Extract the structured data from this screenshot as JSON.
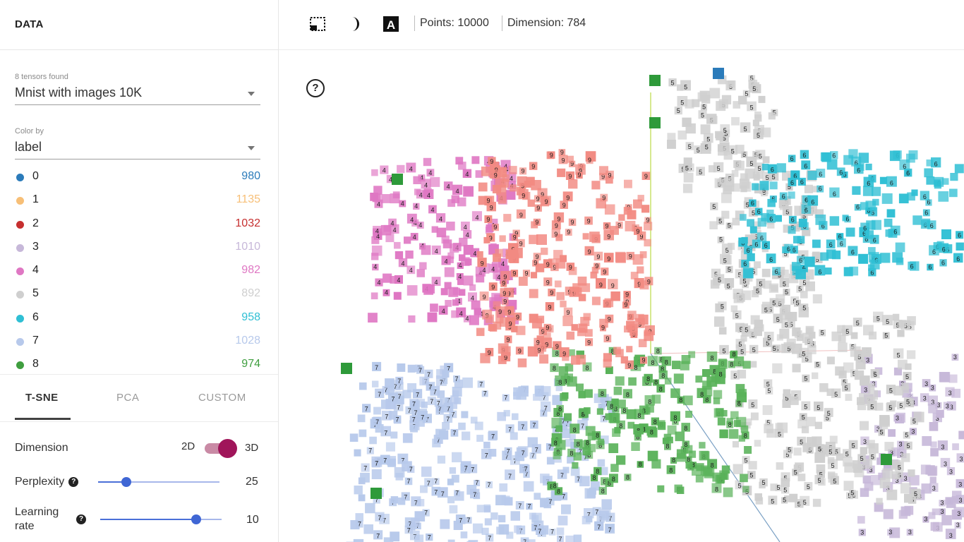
{
  "left_panel": {
    "title": "DATA",
    "tensors_caption": "8 tensors found",
    "tensor_selected": "Mnist with images 10K",
    "colorby_caption": "Color by",
    "colorby_selected": "label",
    "legend": [
      {
        "label": "0",
        "count": "980",
        "color": "#2b7bba"
      },
      {
        "label": "1",
        "count": "1135",
        "color": "#f7bf77"
      },
      {
        "label": "2",
        "count": "1032",
        "color": "#c62f2f"
      },
      {
        "label": "3",
        "count": "1010",
        "color": "#c7b8d9"
      },
      {
        "label": "4",
        "count": "982",
        "color": "#df77c3"
      },
      {
        "label": "5",
        "count": "892",
        "color": "#cfcfcf"
      },
      {
        "label": "6",
        "count": "958",
        "color": "#2fbfd4"
      },
      {
        "label": "7",
        "count": "1028",
        "color": "#b7c9eb"
      },
      {
        "label": "8",
        "count": "974",
        "color": "#3f9e3f"
      }
    ],
    "tabs": [
      "T-SNE",
      "PCA",
      "CUSTOM"
    ],
    "active_tab": "T-SNE",
    "dimension": {
      "label": "Dimension",
      "opt_2d": "2D",
      "opt_3d": "3D",
      "selected": "3D"
    },
    "perplexity": {
      "label": "Perplexity",
      "value": "25"
    },
    "learning_rate": {
      "label_line1": "Learning",
      "label_line2": "rate",
      "value": "10"
    }
  },
  "toolbar": {
    "icons": [
      "select-rect-icon",
      "night-mode-icon",
      "labels-3d-icon"
    ],
    "points": "Points: 10000",
    "dimension": "Dimension: 784"
  },
  "scatter": {
    "help": "?",
    "clusters": [
      {
        "label": "4",
        "color": "#df77c3"
      },
      {
        "label": "9",
        "color": "#f28a82"
      },
      {
        "label": "5",
        "color": "#cfcfcf"
      },
      {
        "label": "6",
        "color": "#2fbfd4"
      },
      {
        "label": "7",
        "color": "#b7c9eb"
      },
      {
        "label": "8",
        "color": "#59b259"
      },
      {
        "label": "3",
        "color": "#c7b8d9"
      }
    ]
  }
}
